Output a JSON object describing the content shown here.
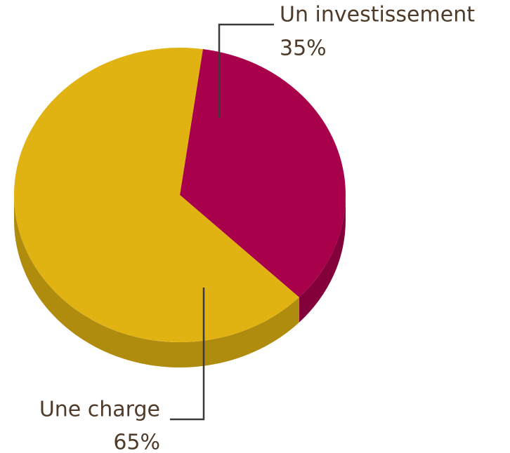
{
  "chart_data": {
    "type": "pie",
    "categories": [
      "Un investissement",
      "Une charge"
    ],
    "values": [
      35,
      65
    ],
    "value_labels": [
      "35%",
      "65%"
    ],
    "colors": [
      "#a8004a",
      "#e0b212"
    ]
  }
}
